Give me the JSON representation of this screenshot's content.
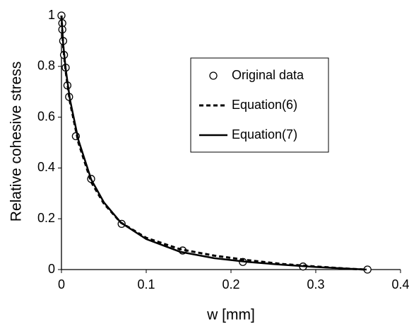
{
  "chart_data": {
    "type": "line",
    "xlabel": "w [mm]",
    "ylabel": "Relative cohesive stress",
    "xlim": [
      0,
      0.4
    ],
    "xticks": [
      0,
      0.1,
      0.2,
      0.3,
      0.4
    ],
    "ylim": [
      0,
      1
    ],
    "yticks": [
      0,
      0.2,
      0.4,
      0.6,
      0.8,
      1
    ],
    "grid": false,
    "legend": "center right",
    "series": [
      {
        "name": "Original data",
        "color": "#000000",
        "marker": "circle",
        "line": "none",
        "x": [
          0,
          0.001,
          0.001,
          0.002,
          0.003,
          0.005,
          0.007,
          0.009,
          0.017,
          0.035,
          0.071,
          0.143,
          0.214,
          0.285,
          0.361
        ],
        "values": [
          1.0,
          0.97,
          0.945,
          0.9,
          0.845,
          0.795,
          0.725,
          0.68,
          0.525,
          0.357,
          0.18,
          0.075,
          0.03,
          0.012,
          0.0
        ]
      },
      {
        "name": "Equation(6)",
        "color": "#000000",
        "marker": "none",
        "line": "dashed",
        "x": [
          0,
          0.002,
          0.005,
          0.01,
          0.02,
          0.035,
          0.05,
          0.07,
          0.1,
          0.14,
          0.18,
          0.22,
          0.26,
          0.3,
          0.34,
          0.36
        ],
        "values": [
          1,
          0.88,
          0.78,
          0.66,
          0.5,
          0.345,
          0.26,
          0.185,
          0.125,
          0.08,
          0.055,
          0.037,
          0.022,
          0.012,
          0.003,
          0
        ]
      },
      {
        "name": "Equation(7)",
        "color": "#000000",
        "marker": "none",
        "line": "solid",
        "x": [
          0,
          0.002,
          0.005,
          0.01,
          0.02,
          0.035,
          0.05,
          0.07,
          0.1,
          0.14,
          0.18,
          0.22,
          0.26,
          0.3,
          0.34,
          0.36
        ],
        "values": [
          1,
          0.89,
          0.79,
          0.67,
          0.51,
          0.355,
          0.265,
          0.185,
          0.12,
          0.07,
          0.045,
          0.03,
          0.019,
          0.01,
          0.003,
          0
        ]
      }
    ]
  }
}
